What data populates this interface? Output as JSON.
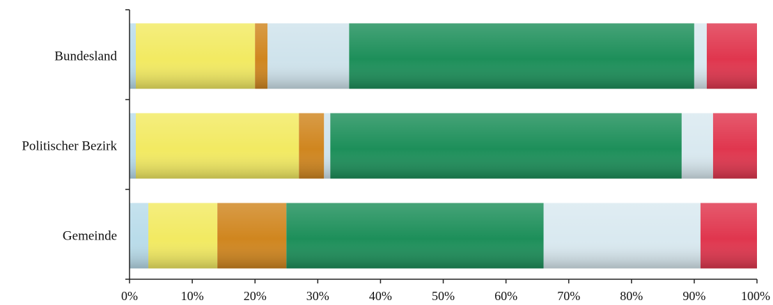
{
  "chart_data": {
    "type": "bar",
    "orientation": "horizontal",
    "stacked": true,
    "normalized": "percent",
    "categories": [
      "Bundesland",
      "Politischer Bezirk",
      "Gemeinde"
    ],
    "series": [
      {
        "color": "#b9dcea",
        "values": [
          1,
          1,
          3
        ]
      },
      {
        "color": "#f2ea62",
        "values": [
          19,
          26,
          11
        ]
      },
      {
        "color": "#d0861f",
        "values": [
          2,
          4,
          11
        ]
      },
      {
        "color": "#cfe3ec",
        "values": [
          13,
          1,
          0
        ]
      },
      {
        "color": "#1d8f5a",
        "values": [
          55,
          56,
          41
        ]
      },
      {
        "color": "#d9e9f0",
        "values": [
          2,
          5,
          25
        ]
      },
      {
        "color": "#e0364e",
        "values": [
          8,
          7,
          9
        ]
      }
    ],
    "xlim": [
      0,
      100
    ],
    "x_ticks": [
      "0%",
      "10%",
      "20%",
      "30%",
      "40%",
      "50%",
      "60%",
      "70%",
      "80%",
      "90%",
      "100%"
    ],
    "grid": false,
    "legend": "none"
  }
}
